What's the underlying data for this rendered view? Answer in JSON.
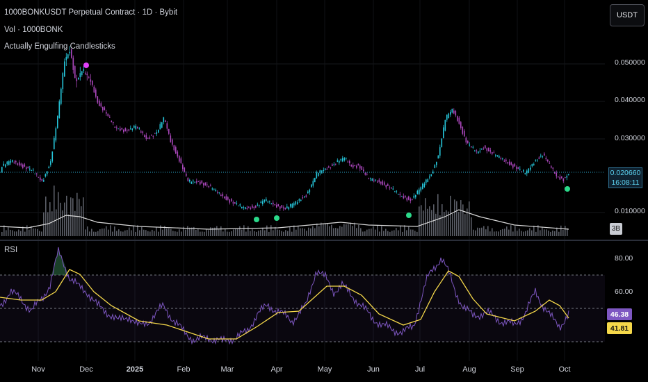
{
  "header": {
    "symbol_line": "1000BONKUSDT Perpetual Contract · 1D · Bybit",
    "volume_line": "Vol · 1000BONK",
    "indicator_line": "Actually Engulfing Candlesticks"
  },
  "currency_button": "USDT",
  "price_axis": {
    "labels": [
      "0.050000",
      "0.040000",
      "0.030000",
      "0.010000"
    ],
    "current_price": "0.020660",
    "countdown": "16:08:11"
  },
  "volume_badge": "3B",
  "rsi": {
    "title": "RSI",
    "labels": [
      "80.00",
      "60.00"
    ],
    "rsi_value": "46.38",
    "ma_value": "41.81",
    "rsi_color": "#7e57c2",
    "ma_color": "#f5d84a"
  },
  "time_axis": [
    "Nov",
    "Dec",
    "2025",
    "Feb",
    "Mar",
    "Apr",
    "May",
    "Jun",
    "Jul",
    "Aug",
    "Sep",
    "Oct"
  ],
  "colors": {
    "up": "#26c6da",
    "down": "#ab47bc",
    "bullish_marker": "#2bd98a",
    "bearish_marker": "#e040fb"
  }
}
